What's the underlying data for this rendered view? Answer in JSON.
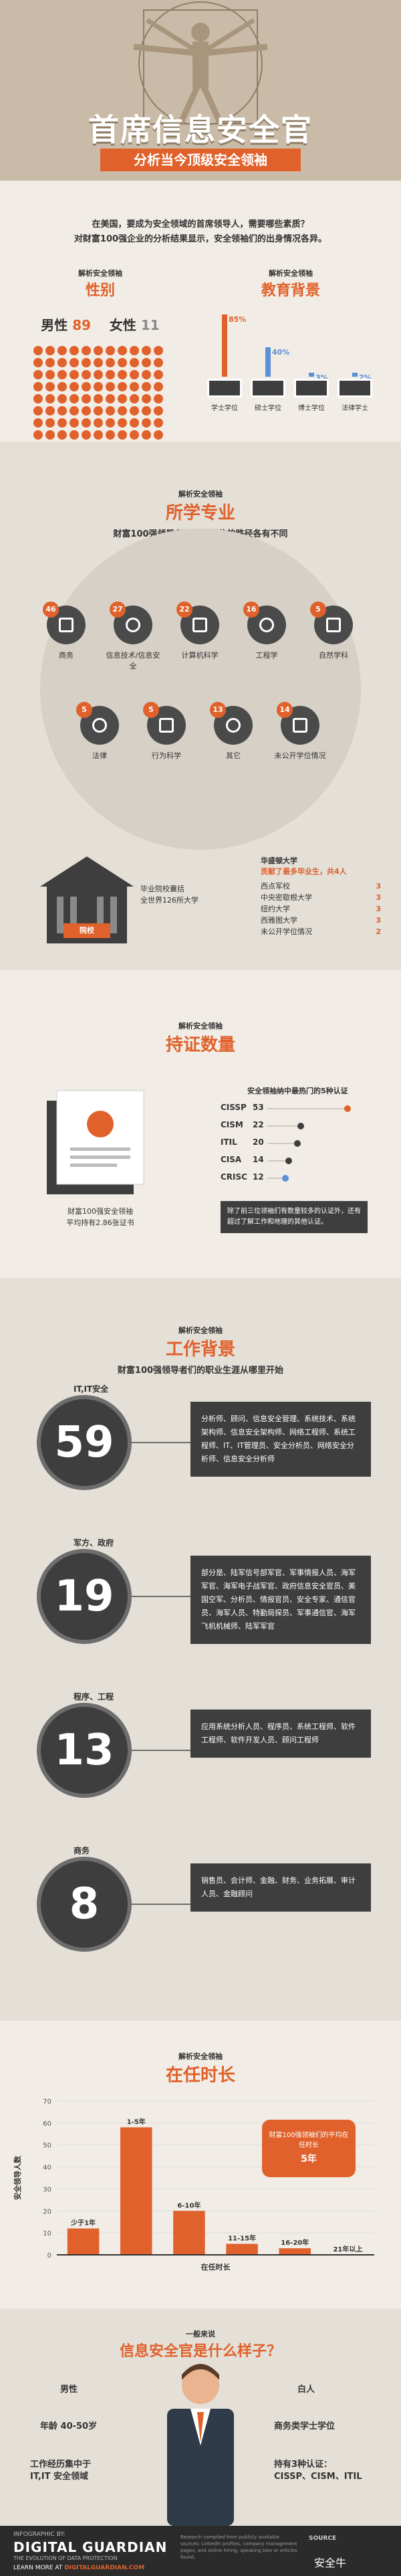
{
  "hero": {
    "title": "首席信息安全官",
    "subtitle": "分析当今顶级安全领袖"
  },
  "intro": {
    "line1": "在美国，要成为安全领域的首席领导人，需要哪些素质？",
    "line2": "对财富100强企业的分析结果显示，安全领袖们的出身情况各异。",
    "gender": {
      "small": "解析安全领袖",
      "big": "性别",
      "male_label": "男性",
      "male_value": "89",
      "female_label": "女性",
      "female_value": "11",
      "male_count": 89,
      "female_count": 11
    },
    "education": {
      "small": "解析安全领袖",
      "big": "教育背景",
      "bars": [
        {
          "label": "学士学位",
          "value": "85%",
          "pct": 85
        },
        {
          "label": "硕士学位",
          "value": "40%",
          "pct": 40
        },
        {
          "label": "博士学位",
          "value": "3%",
          "pct": 3
        },
        {
          "label": "法律学士",
          "value": "2%",
          "pct": 2
        }
      ]
    }
  },
  "major": {
    "small": "解析安全领袖",
    "big": "所学专业",
    "desc": "财富100强领导者们拿到学位的路径各有不同",
    "row1": [
      {
        "num": "46",
        "label": "商务"
      },
      {
        "num": "27",
        "label": "信息技术/信息安全"
      },
      {
        "num": "22",
        "label": "计算机科学"
      },
      {
        "num": "16",
        "label": "工程学"
      },
      {
        "num": "5",
        "label": "自然学科"
      }
    ],
    "row2": [
      {
        "num": "5",
        "label": "法律"
      },
      {
        "num": "5",
        "label": "行为科学"
      },
      {
        "num": "13",
        "label": "其它"
      },
      {
        "num": "14",
        "label": "未公开学位情况"
      }
    ],
    "school_stat": "毕业院校囊括",
    "school_stat2": "全世界126所大学",
    "school_flag": "院校",
    "top_school_title": "华盛顿大学",
    "top_school_sub": "贡献了最多毕业生，共4人",
    "schools": [
      {
        "name": "西点军校",
        "count": "3"
      },
      {
        "name": "中央密歇根大学",
        "count": "3"
      },
      {
        "name": "纽约大学",
        "count": "3"
      },
      {
        "name": "西雅图大学",
        "count": "3"
      },
      {
        "name": "未公开学位情况",
        "count": "2"
      }
    ]
  },
  "cert": {
    "small": "解析安全领袖",
    "big": "持证数量",
    "chart_title": "安全领袖纳中最热门的5种认证",
    "items": [
      {
        "name": "CISSP",
        "value": "53",
        "n": 53
      },
      {
        "name": "CISM",
        "value": "22",
        "n": 22
      },
      {
        "name": "ITIL",
        "value": "20",
        "n": 20
      },
      {
        "name": "CISA",
        "value": "14",
        "n": 14
      },
      {
        "name": "CRISC",
        "value": "12",
        "n": 12
      }
    ],
    "left_note": "财富100强安全领袖",
    "left_note2": "平均持有2.86张证书",
    "note": "除了前三位领袖们有数量较多的认证外，还有超过了解工作和地理的其他认证。"
  },
  "work": {
    "small": "解析安全领袖",
    "big": "工作背景",
    "desc": "财富100强领导者们的职业生涯从哪里开始",
    "items": [
      {
        "tag": "IT,IT安全",
        "num": "59",
        "text": "分析师、顾问、信息安全管理、系统技术、系统架构师、信息安全架构师、网络工程师、系统工程师、IT、IT管理员、安全分析员、网络安全分析师、信息安全分析师"
      },
      {
        "tag": "军方、政府",
        "num": "19",
        "text": "部分是、陆军信号部军官、军事情报人员、海军军官、海军电子战军官、政府信息安全官员、美国空军、分析员、情报官员、安全专家、通信官员、海军人员、特勤局探员、军事通信官、海军飞机机械师、陆军军官"
      },
      {
        "tag": "程序、工程",
        "num": "13",
        "text": "应用系统分析人员、程序员、系统工程师、软件工程师、软件开发人员、顾问工程师"
      },
      {
        "tag": "商务",
        "num": "8",
        "text": "销售员、会计师、金融、财务、业务拓展、审计人员、金融顾问"
      }
    ]
  },
  "tenure": {
    "small": "解析安全领袖",
    "big": "在任时长",
    "callout": "财富100强领袖们的平均在任时长",
    "callout_value": "5年",
    "chart_data": {
      "type": "bar",
      "categories": [
        "少于1年",
        "1-5年",
        "6-10年",
        "11-15年",
        "16-20年",
        "21年以上"
      ],
      "values": [
        12,
        58,
        20,
        5,
        3,
        0
      ],
      "ylim": [
        0,
        70
      ],
      "yticks": [
        0,
        10,
        20,
        30,
        40,
        50,
        60,
        70
      ],
      "ylabel": "安全领导人数",
      "xlabel": "在任时长"
    }
  },
  "profile": {
    "small": "一般来说",
    "big": "信息安全官是什么样子？",
    "gender": "男性",
    "white": "白人",
    "age": "年龄 40-50岁",
    "degree": "商务类学士学位",
    "start": "工作经历集中于",
    "start2": "IT,IT 安全领域",
    "certs": "持有3种认证：",
    "certs2": "CISSP、CISM、ITIL"
  },
  "footer": {
    "by": "INFOGRAPHIC BY:",
    "brand": "DIGITAL GUARDIAN",
    "tagline": "THE EVOLUTION OF DATA PROTECTION",
    "learn": "LEARN MORE AT",
    "url": "DIGITALGUARDIAN.COM",
    "fine": "Research compiled from publicly available sources: LinkedIn profiles, company management pages, and online hiring, speaking bios or articles found.",
    "watermark": "安全牛",
    "partner": "SOURCE"
  }
}
